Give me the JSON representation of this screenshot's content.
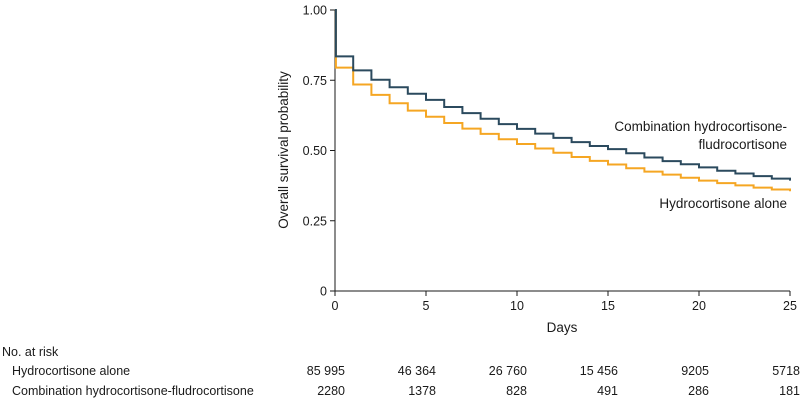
{
  "chart_data": {
    "type": "line",
    "step": true,
    "xlabel": "Days",
    "ylabel": "Overall survival probability",
    "xlim": [
      0,
      25
    ],
    "ylim": [
      0,
      1
    ],
    "x_ticks": [
      "0",
      "5",
      "10",
      "15",
      "20",
      "25"
    ],
    "y_ticks": [
      "0",
      "0.25",
      "0.50",
      "0.75",
      "1.00"
    ],
    "grid": false,
    "series": [
      {
        "name": "Hydrocortisone alone",
        "label_lines": [
          "Hydrocortisone alone"
        ],
        "color": "#F5A623",
        "x": [
          0,
          0.05,
          1,
          2,
          3,
          4,
          5,
          6,
          7,
          8,
          9,
          10,
          11,
          12,
          13,
          14,
          15,
          16,
          17,
          18,
          19,
          20,
          21,
          22,
          23,
          24,
          25
        ],
        "y": [
          1.0,
          0.795,
          0.735,
          0.698,
          0.668,
          0.642,
          0.62,
          0.598,
          0.578,
          0.559,
          0.54,
          0.523,
          0.507,
          0.492,
          0.477,
          0.463,
          0.45,
          0.437,
          0.425,
          0.414,
          0.403,
          0.393,
          0.384,
          0.376,
          0.368,
          0.361,
          0.355
        ]
      },
      {
        "name": "Combination hydrocortisone-fludrocortisone",
        "label_lines": [
          "Combination hydrocortisone-",
          "fludrocortisone"
        ],
        "color": "#2B4A5E",
        "x": [
          0,
          0.05,
          1,
          2,
          3,
          4,
          5,
          6,
          7,
          8,
          9,
          10,
          11,
          12,
          13,
          14,
          15,
          16,
          17,
          18,
          19,
          20,
          21,
          22,
          23,
          24,
          25
        ],
        "y": [
          1.0,
          0.835,
          0.785,
          0.752,
          0.725,
          0.702,
          0.68,
          0.655,
          0.633,
          0.613,
          0.594,
          0.577,
          0.56,
          0.545,
          0.53,
          0.516,
          0.505,
          0.49,
          0.475,
          0.462,
          0.451,
          0.44,
          0.428,
          0.418,
          0.409,
          0.4,
          0.393
        ]
      }
    ],
    "risk_table": {
      "title": "No. at risk",
      "time_points": [
        0,
        5,
        10,
        15,
        20,
        25
      ],
      "rows": [
        {
          "label": "Hydrocortisone alone",
          "values": [
            "85 995",
            "46 364",
            "26 760",
            "15 456",
            "9205",
            "5718"
          ]
        },
        {
          "label": "Combination hydrocortisone-fludrocortisone",
          "values": [
            "2280",
            "1378",
            "828",
            "491",
            "286",
            "181"
          ]
        }
      ]
    }
  }
}
